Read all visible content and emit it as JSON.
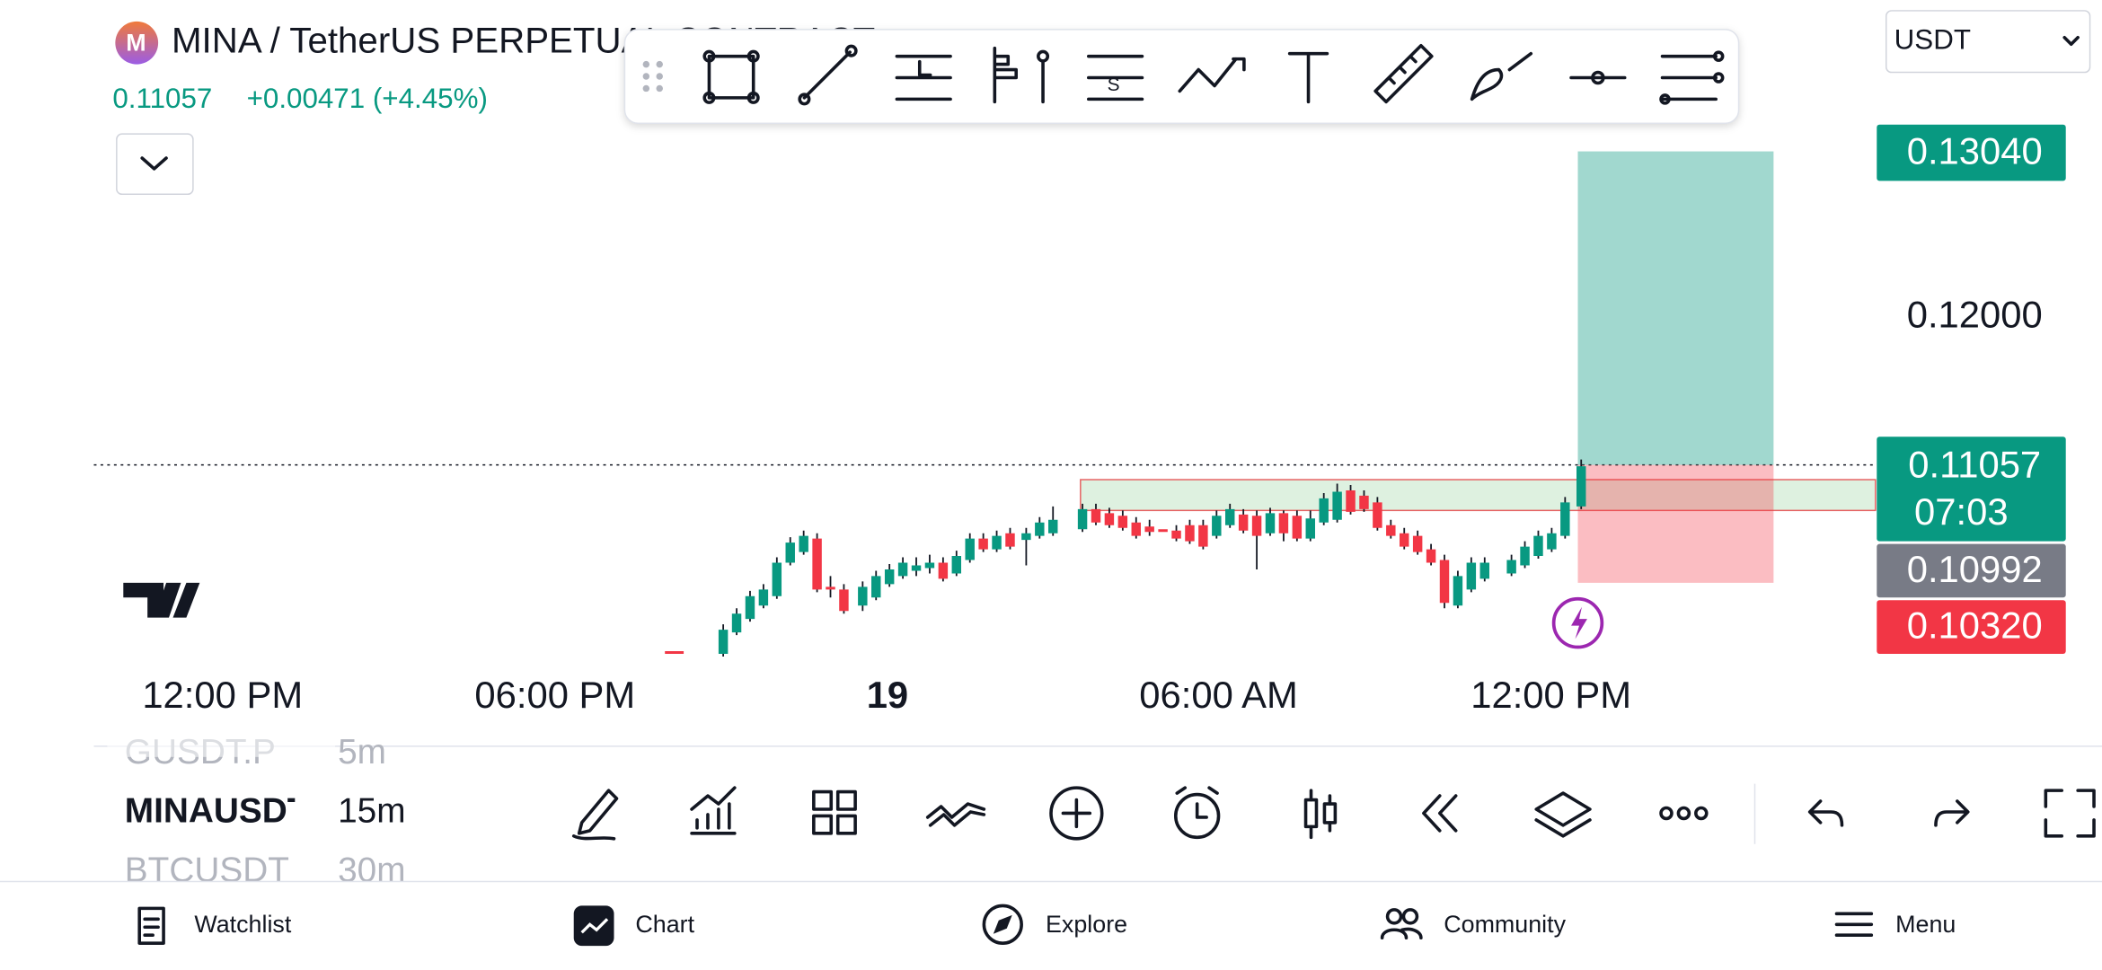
{
  "header": {
    "symbol": "MINA / TetherUS PERPETUAL CONTRACT",
    "price": "0.11057",
    "change": "+0.00471 (+4.45%)",
    "currency": "USDT"
  },
  "price_axis": {
    "labels": [
      "0.13040",
      "0.12000"
    ],
    "last_price": "0.11057",
    "countdown": "07:03",
    "gray_price": "0.10992",
    "stop_price": "0.10320"
  },
  "time_axis": {
    "labels": [
      "12:00 PM",
      "06:00 PM",
      "19",
      "06:00 AM",
      "12:00 PM"
    ]
  },
  "watchlist": [
    {
      "symbol": "GUSDT.P",
      "interval": "5m"
    },
    {
      "symbol": "MINAUSDT",
      "interval": "15m"
    },
    {
      "symbol": "BTCUSDT",
      "interval": "30m"
    }
  ],
  "nav": [
    "Watchlist",
    "Chart",
    "Explore",
    "Community",
    "Menu"
  ]
}
